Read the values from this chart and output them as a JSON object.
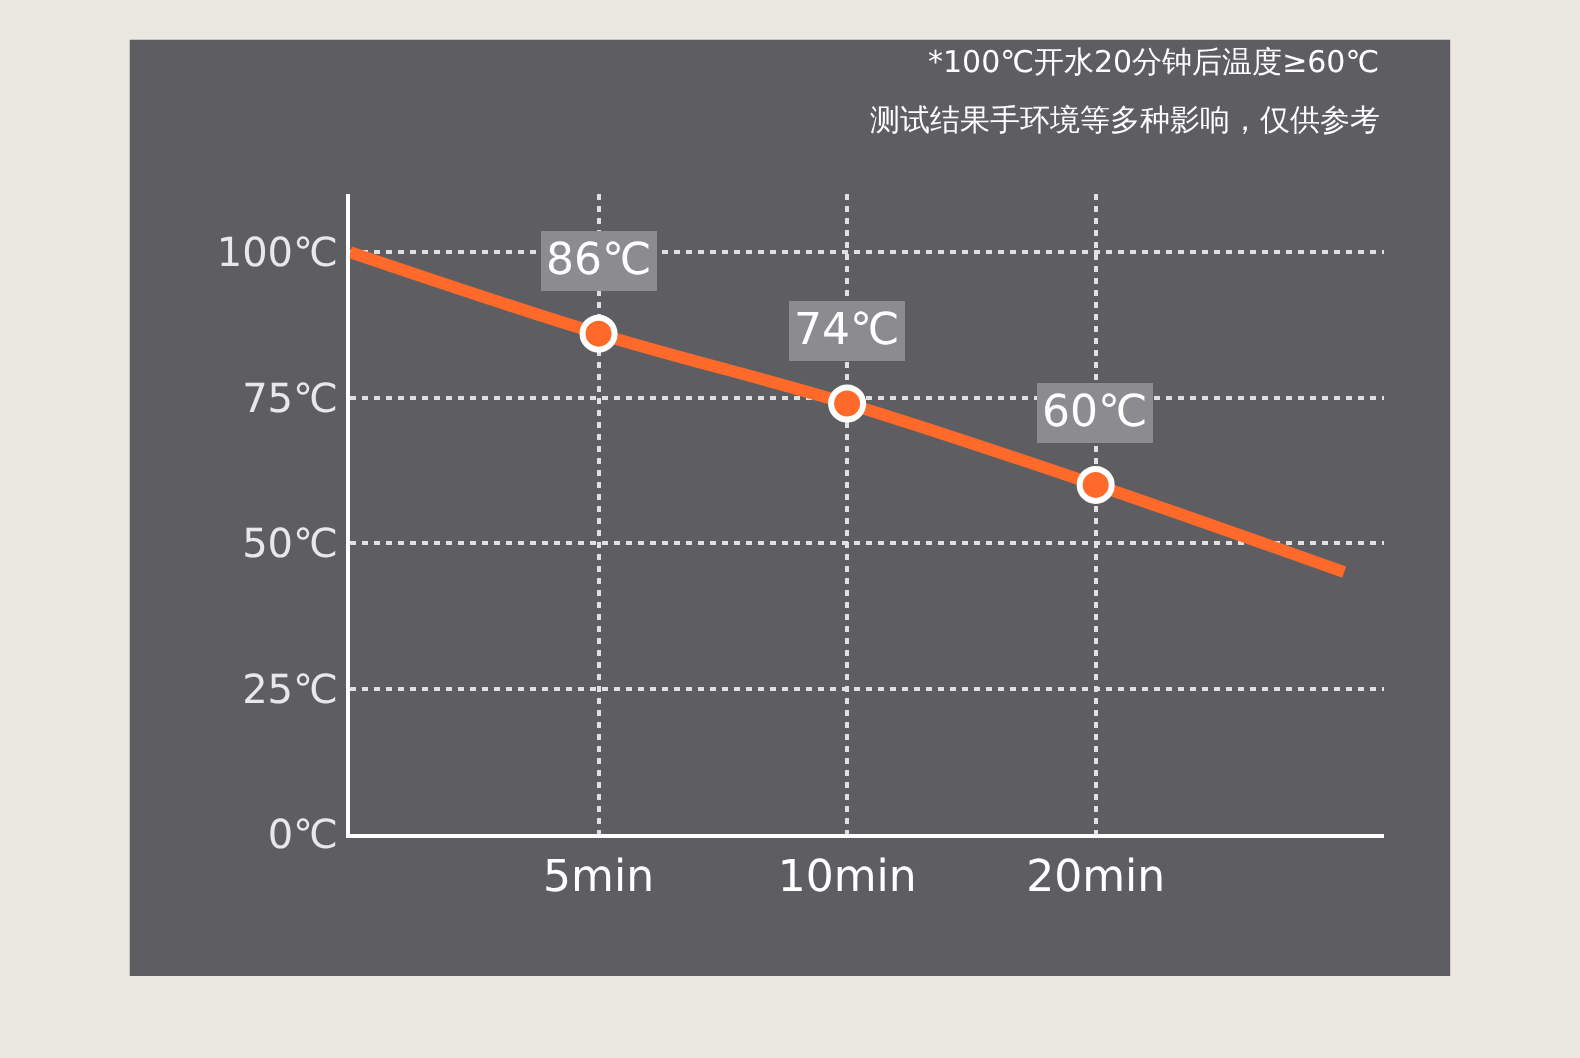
{
  "chart_data": {
    "type": "line",
    "categories": [
      null,
      "5min",
      "10min",
      "20min",
      null
    ],
    "series": [
      {
        "color": "#ff6a2a",
        "values": [
          100,
          86,
          74,
          60,
          45
        ],
        "value_labels": [
          null,
          "86℃",
          "74℃",
          "60℃",
          null
        ]
      }
    ],
    "ylim": [
      0,
      110
    ],
    "yticks": [
      {
        "value": 0,
        "label": "0℃"
      },
      {
        "value": 25,
        "label": "25℃"
      },
      {
        "value": 50,
        "label": "50℃"
      },
      {
        "value": 75,
        "label": "75℃"
      },
      {
        "value": 100,
        "label": "100℃"
      }
    ],
    "grid": true,
    "marker": "circle",
    "line_style": "solid",
    "annotations": [
      "*100℃开水20分钟后温度≥60℃",
      "测试结果手环境等多种影响，仅供参考"
    ]
  }
}
